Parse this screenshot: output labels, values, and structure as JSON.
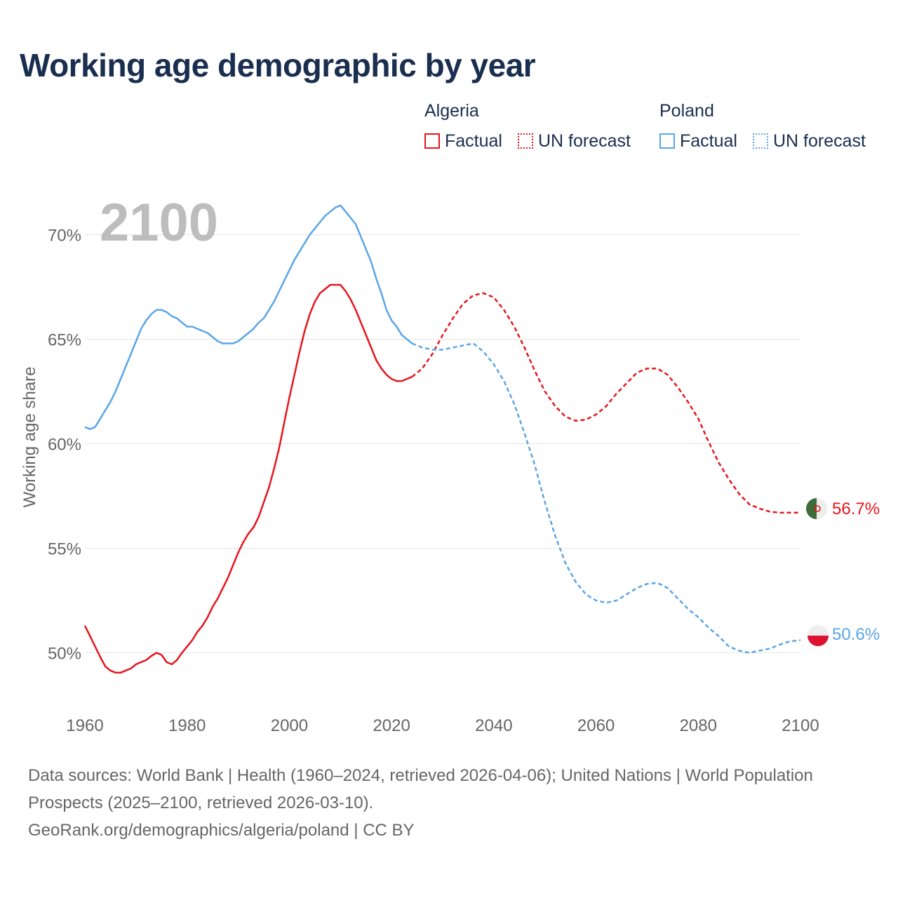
{
  "title": "Working age demographic by year",
  "legend": {
    "groups": [
      {
        "name": "Algeria",
        "color": "#e8141c",
        "items": [
          {
            "label": "Factual",
            "style": "solid"
          },
          {
            "label": "UN forecast",
            "style": "dotted"
          }
        ]
      },
      {
        "name": "Poland",
        "color": "#5aa6e6",
        "items": [
          {
            "label": "Factual",
            "style": "solid"
          },
          {
            "label": "UN forecast",
            "style": "dotted"
          }
        ]
      }
    ]
  },
  "year_label": "2100",
  "footer": {
    "sources": "Data sources: World Bank | Health (1960–2024, retrieved 2026-04-06); United Nations | World Population Prospects (2025–2100, retrieved 2026-03-10).",
    "credit": "GeoRank.org/demographics/algeria/poland | CC BY"
  },
  "chart_data": {
    "type": "line",
    "title": "Working age demographic by year",
    "xlabel": "",
    "ylabel": "Working age share",
    "xlim": [
      1960,
      2100
    ],
    "ylim": [
      47.5,
      72.5
    ],
    "x_ticks": [
      1960,
      1980,
      2000,
      2020,
      2040,
      2060,
      2080,
      2100
    ],
    "y_ticks": [
      50,
      55,
      60,
      65,
      70
    ],
    "y_tick_labels": [
      "50%",
      "55%",
      "60%",
      "65%",
      "70%"
    ],
    "grid": true,
    "series": [
      {
        "name": "Algeria",
        "color": "#e8141c",
        "end_label": "56.7%",
        "factual": {
          "x": [
            1960,
            1961,
            1962,
            1963,
            1964,
            1965,
            1966,
            1967,
            1968,
            1969,
            1970,
            1971,
            1972,
            1973,
            1974,
            1975,
            1976,
            1977,
            1978,
            1979,
            1980,
            1981,
            1982,
            1983,
            1984,
            1985,
            1986,
            1987,
            1988,
            1989,
            1990,
            1991,
            1992,
            1993,
            1994,
            1995,
            1996,
            1997,
            1998,
            1999,
            2000,
            2001,
            2002,
            2003,
            2004,
            2005,
            2006,
            2007,
            2008,
            2009,
            2010,
            2011,
            2012,
            2013,
            2014,
            2015,
            2016,
            2017,
            2018,
            2019,
            2020,
            2021,
            2022,
            2023,
            2024
          ],
          "y": [
            51.3,
            50.8,
            50.3,
            49.8,
            49.35,
            49.15,
            49.05,
            49.05,
            49.15,
            49.25,
            49.45,
            49.55,
            49.65,
            49.85,
            50.0,
            49.9,
            49.55,
            49.45,
            49.65,
            50.0,
            50.3,
            50.6,
            51.0,
            51.3,
            51.7,
            52.2,
            52.6,
            53.1,
            53.6,
            54.2,
            54.8,
            55.3,
            55.7,
            56.0,
            56.5,
            57.2,
            57.9,
            58.8,
            59.8,
            61.0,
            62.2,
            63.3,
            64.4,
            65.4,
            66.2,
            66.8,
            67.2,
            67.4,
            67.6,
            67.6,
            67.6,
            67.3,
            66.9,
            66.4,
            65.8,
            65.2,
            64.6,
            64.0,
            63.6,
            63.3,
            63.1,
            63.0,
            63.0,
            63.1,
            63.2
          ]
        },
        "forecast": {
          "x": [
            2024,
            2026,
            2028,
            2030,
            2032,
            2034,
            2036,
            2038,
            2040,
            2042,
            2044,
            2046,
            2048,
            2050,
            2052,
            2054,
            2056,
            2058,
            2060,
            2062,
            2064,
            2066,
            2068,
            2070,
            2072,
            2074,
            2076,
            2078,
            2080,
            2082,
            2084,
            2086,
            2088,
            2090,
            2092,
            2094,
            2096,
            2098,
            2100
          ],
          "y": [
            63.2,
            63.6,
            64.3,
            65.2,
            66.0,
            66.7,
            67.1,
            67.2,
            67.0,
            66.4,
            65.6,
            64.6,
            63.5,
            62.5,
            61.8,
            61.3,
            61.1,
            61.15,
            61.4,
            61.8,
            62.4,
            62.9,
            63.4,
            63.6,
            63.6,
            63.3,
            62.7,
            62.0,
            61.2,
            60.1,
            59.1,
            58.3,
            57.6,
            57.1,
            56.9,
            56.75,
            56.7,
            56.7,
            56.7
          ]
        }
      },
      {
        "name": "Poland",
        "color": "#5aa6e6",
        "end_label": "50.6%",
        "factual": {
          "x": [
            1960,
            1961,
            1962,
            1963,
            1964,
            1965,
            1966,
            1967,
            1968,
            1969,
            1970,
            1971,
            1972,
            1973,
            1974,
            1975,
            1976,
            1977,
            1978,
            1979,
            1980,
            1981,
            1982,
            1983,
            1984,
            1985,
            1986,
            1987,
            1988,
            1989,
            1990,
            1991,
            1992,
            1993,
            1994,
            1995,
            1996,
            1997,
            1998,
            1999,
            2000,
            2001,
            2002,
            2003,
            2004,
            2005,
            2006,
            2007,
            2008,
            2009,
            2010,
            2011,
            2012,
            2013,
            2014,
            2015,
            2016,
            2017,
            2018,
            2019,
            2020,
            2021,
            2022,
            2023,
            2024
          ],
          "y": [
            60.8,
            60.7,
            60.8,
            61.2,
            61.6,
            62.0,
            62.5,
            63.1,
            63.7,
            64.3,
            64.9,
            65.5,
            65.9,
            66.2,
            66.4,
            66.4,
            66.3,
            66.1,
            66.0,
            65.8,
            65.6,
            65.6,
            65.5,
            65.4,
            65.3,
            65.1,
            64.9,
            64.8,
            64.8,
            64.8,
            64.9,
            65.1,
            65.3,
            65.5,
            65.8,
            66.0,
            66.4,
            66.8,
            67.3,
            67.8,
            68.3,
            68.8,
            69.2,
            69.6,
            70.0,
            70.3,
            70.6,
            70.9,
            71.1,
            71.3,
            71.4,
            71.1,
            70.8,
            70.5,
            69.9,
            69.3,
            68.7,
            67.9,
            67.2,
            66.4,
            65.9,
            65.6,
            65.2,
            65.0,
            64.8
          ]
        },
        "forecast": {
          "x": [
            2024,
            2026,
            2028,
            2030,
            2032,
            2034,
            2036,
            2038,
            2040,
            2042,
            2044,
            2046,
            2048,
            2050,
            2052,
            2054,
            2056,
            2058,
            2060,
            2062,
            2064,
            2066,
            2068,
            2070,
            2072,
            2074,
            2076,
            2078,
            2080,
            2082,
            2084,
            2086,
            2088,
            2090,
            2092,
            2094,
            2096,
            2098,
            2100
          ],
          "y": [
            64.8,
            64.6,
            64.5,
            64.5,
            64.6,
            64.7,
            64.8,
            64.4,
            63.8,
            63.0,
            61.9,
            60.5,
            59.0,
            57.2,
            55.6,
            54.3,
            53.4,
            52.8,
            52.5,
            52.4,
            52.5,
            52.8,
            53.1,
            53.3,
            53.35,
            53.1,
            52.6,
            52.1,
            51.7,
            51.2,
            50.8,
            50.3,
            50.1,
            50.0,
            50.1,
            50.2,
            50.4,
            50.55,
            50.6
          ]
        }
      }
    ]
  }
}
